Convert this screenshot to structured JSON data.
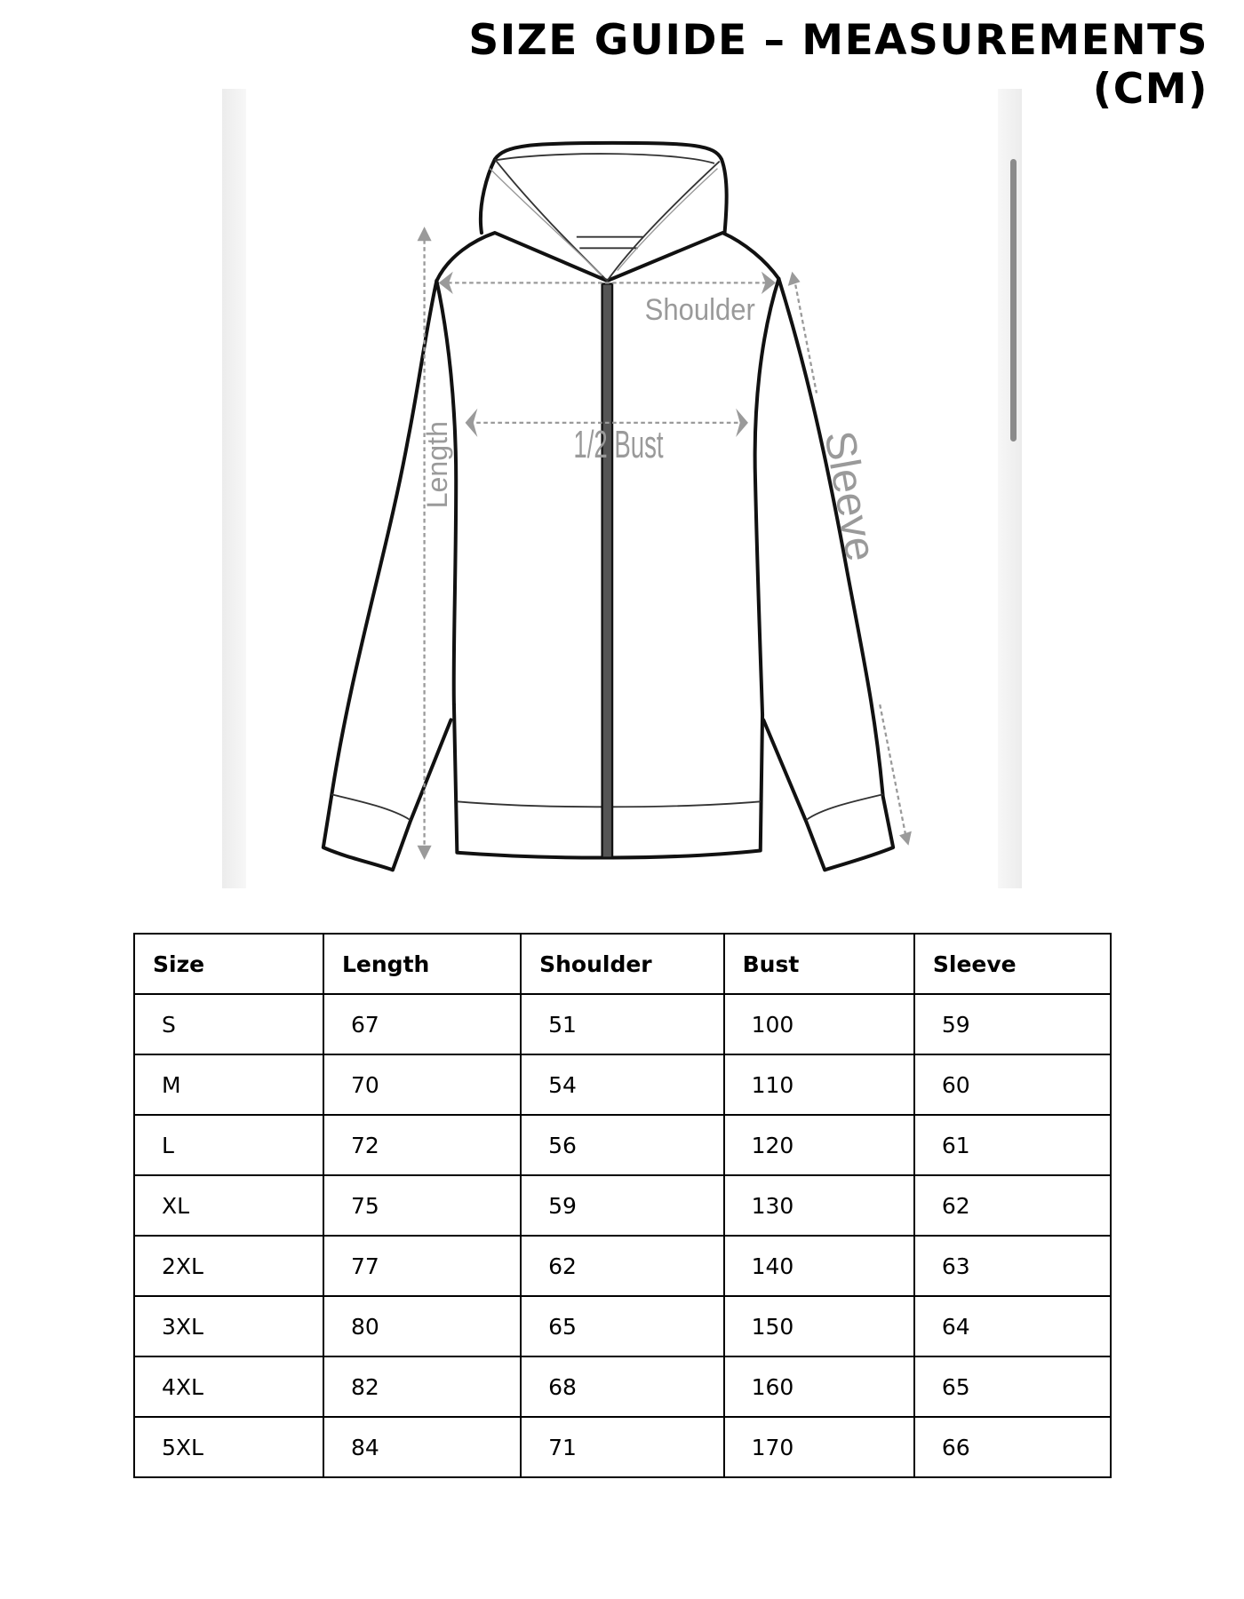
{
  "title": "SIZE GUIDE – MEASUREMENTS (CM)",
  "figure": {
    "labels": {
      "shoulder": "Shoulder",
      "bust": "1/2 Bust",
      "length": "Length",
      "sleeve": "Sleeve"
    },
    "line_color": "#111111",
    "measure_color": "#9a9a9a"
  },
  "table": {
    "headers": [
      "Size",
      "Length",
      "Shoulder",
      "Bust",
      "Sleeve"
    ],
    "rows": [
      [
        "S",
        "67",
        "51",
        "100",
        "59"
      ],
      [
        "M",
        "70",
        "54",
        "110",
        "60"
      ],
      [
        "L",
        "72",
        "56",
        "120",
        "61"
      ],
      [
        "XL",
        "75",
        "59",
        "130",
        "62"
      ],
      [
        "2XL",
        "77",
        "62",
        "140",
        "63"
      ],
      [
        "3XL",
        "80",
        "65",
        "150",
        "64"
      ],
      [
        "4XL",
        "82",
        "68",
        "160",
        "65"
      ],
      [
        "5XL",
        "84",
        "71",
        "170",
        "66"
      ]
    ]
  }
}
